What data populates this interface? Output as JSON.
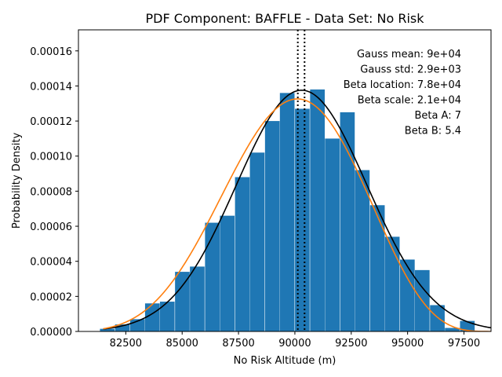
{
  "chart_data": {
    "type": "bar",
    "title": "PDF Component: BAFFLE - Data Set: No Risk",
    "xlabel": "No Risk Altitude (m)",
    "ylabel": "Probability Density",
    "xlim": [
      80400,
      98700
    ],
    "ylim": [
      0,
      0.000172
    ],
    "x_ticks": [
      82500,
      85000,
      87500,
      90000,
      92500,
      95000,
      97500
    ],
    "x_tick_labels": [
      "82500",
      "85000",
      "87500",
      "90000",
      "92500",
      "95000",
      "97500"
    ],
    "y_ticks": [
      0,
      2e-05,
      4e-05,
      6e-05,
      8e-05,
      0.0001,
      0.00012,
      0.00014,
      0.00016
    ],
    "y_tick_labels": [
      "0.00000",
      "0.00002",
      "0.00004",
      "0.00006",
      "0.00008",
      "0.00010",
      "0.00012",
      "0.00014",
      "0.00016"
    ],
    "bar_color": "#1f77b4",
    "bin_width": 650,
    "bars": {
      "x": [
        81680,
        82350,
        83020,
        83680,
        84340,
        85010,
        85670,
        86340,
        87000,
        87670,
        88330,
        89000,
        89660,
        90330,
        91000,
        91660,
        92330,
        92990,
        93660,
        94320,
        94990,
        95650,
        96320,
        96980,
        97650
      ],
      "values": [
        1.5e-06,
        4e-06,
        7e-06,
        1.6e-05,
        1.7e-05,
        3.4e-05,
        3.7e-05,
        6.2e-05,
        6.6e-05,
        8.8e-05,
        0.000102,
        0.00012,
        0.000136,
        0.000127,
        0.000138,
        0.00011,
        0.000125,
        9.2e-05,
        7.2e-05,
        5.4e-05,
        4.1e-05,
        3.5e-05,
        1.5e-05,
        2e-06,
        6e-06
      ]
    },
    "series": [
      {
        "type": "gauss",
        "mean": 90300,
        "std": 2900,
        "color": "#000000"
      },
      {
        "type": "beta",
        "location": 78000,
        "scale": 21000,
        "a": 7,
        "b": 5.4,
        "color": "#ff7f0e"
      }
    ],
    "vlines": [
      90130,
      90430
    ],
    "annotations": [
      "Gauss mean: 9e+04",
      "Gauss std: 2.9e+03",
      "Beta location: 7.8e+04",
      "Beta scale: 2.1e+04",
      "Beta A: 7",
      "Beta B: 5.4"
    ]
  }
}
